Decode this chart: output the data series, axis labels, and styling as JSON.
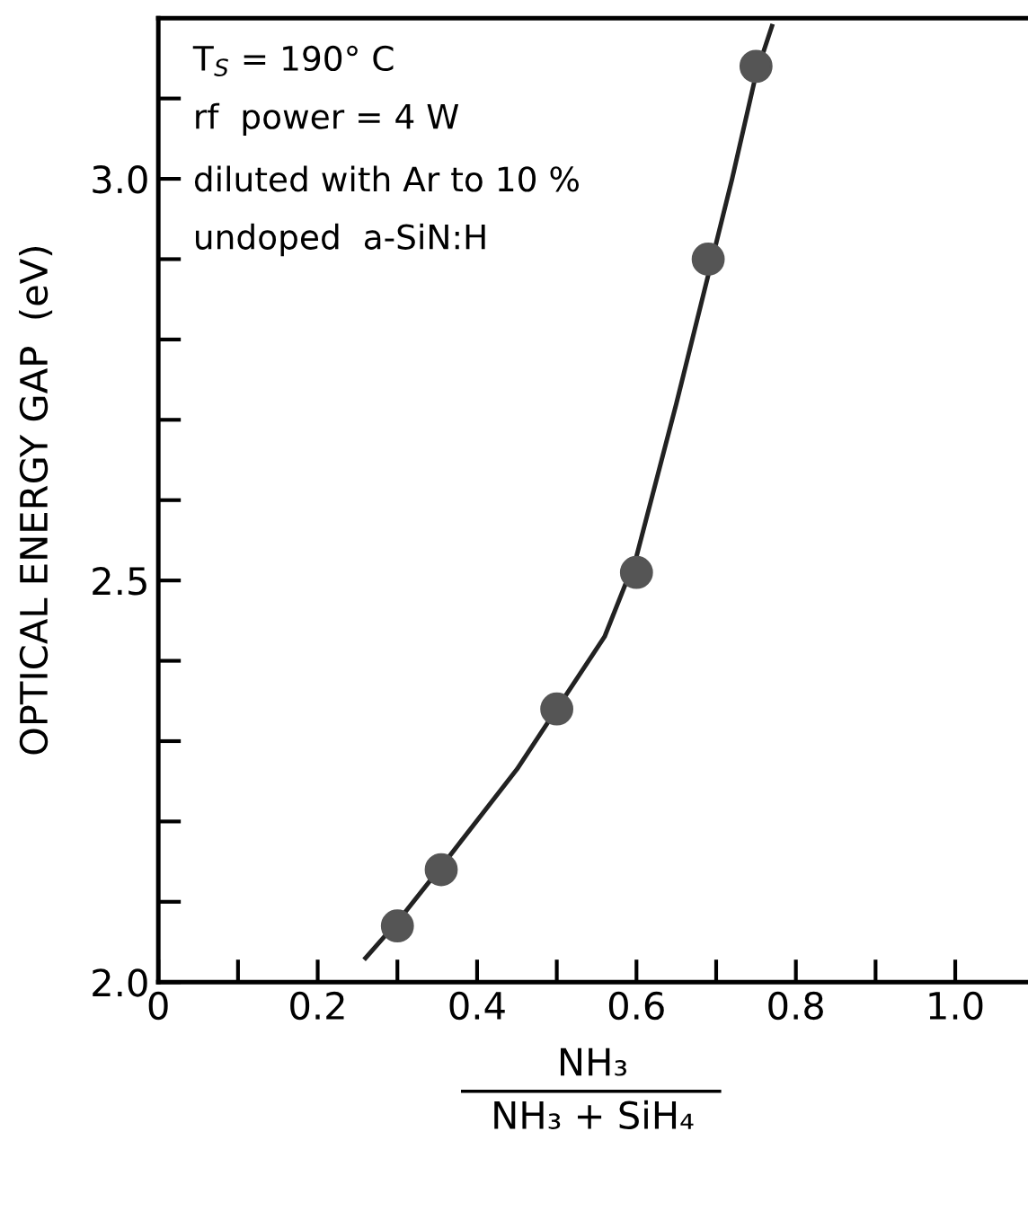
{
  "chart_data": {
    "type": "scatter",
    "xlabel": "NH₃\nNH₃ + SiH₄",
    "ylabel": "OPTICAL ENERGY GAP  (eV)",
    "x": [
      0.3,
      0.355,
      0.5,
      0.6,
      0.69,
      0.75
    ],
    "series": [
      {
        "marker": "circle",
        "color": "#555555",
        "values": [
          2.07,
          2.14,
          2.34,
          2.51,
          2.9,
          3.14
        ]
      },
      {
        "type": "line",
        "marker": "none",
        "color": "#222222",
        "x": [
          0.26,
          0.3,
          0.36,
          0.45,
          0.5,
          0.56,
          0.6,
          0.65,
          0.69,
          0.72,
          0.75,
          0.77
        ],
        "values": [
          2.03,
          2.075,
          2.15,
          2.265,
          2.34,
          2.43,
          2.53,
          2.72,
          2.88,
          3.0,
          3.13,
          3.19
        ]
      }
    ],
    "xlim": [
      0,
      1.09
    ],
    "ylim": [
      2.0,
      3.2
    ],
    "xticks": [
      0,
      {
        "value": 0.1,
        "label": null
      },
      0.2,
      {
        "value": 0.3,
        "label": null
      },
      0.4,
      {
        "value": 0.5,
        "label": null
      },
      0.6,
      {
        "value": 0.7,
        "label": null
      },
      0.8,
      {
        "value": 0.9,
        "label": null
      },
      {
        "value": 1.0,
        "label": "1.0"
      }
    ],
    "yticks": [
      {
        "value": 2.0,
        "label": "2.0"
      },
      {
        "value": 2.1,
        "label": null
      },
      {
        "value": 2.2,
        "label": null
      },
      {
        "value": 2.3,
        "label": null
      },
      {
        "value": 2.4,
        "label": null
      },
      2.5,
      {
        "value": 2.6,
        "label": null
      },
      {
        "value": 2.7,
        "label": null
      },
      {
        "value": 2.8,
        "label": null
      },
      {
        "value": 2.9,
        "label": null
      },
      {
        "value": 3.0,
        "label": "3.0"
      },
      {
        "value": 3.1,
        "label": null
      }
    ],
    "annotations": [
      "T$_{S}$ = 190° C",
      "rf  power = 4 W",
      "diluted with Ar to 10 %",
      "undoped  a-SiN:H"
    ],
    "grid": false,
    "legend": false
  }
}
